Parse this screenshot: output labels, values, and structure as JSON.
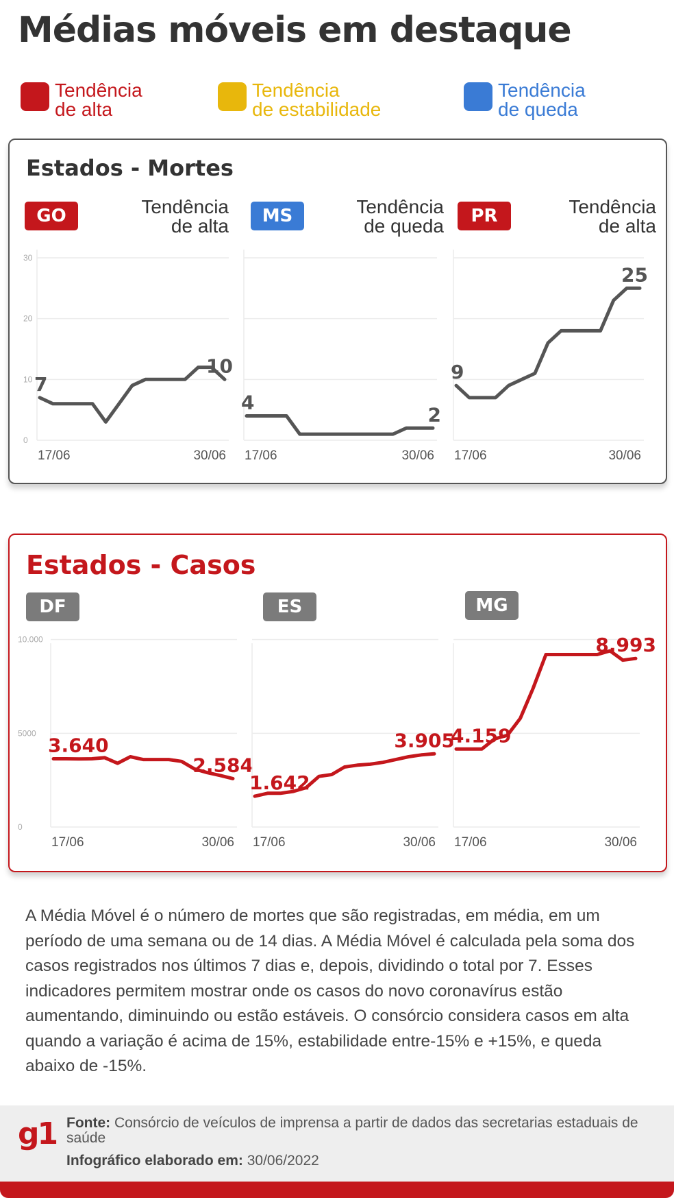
{
  "title": "Médias móveis em destaque",
  "legend": [
    {
      "label": "Tendência\nde alta",
      "color": "#c4171c"
    },
    {
      "label": "Tendência\nde estabilidade",
      "color": "#e8b70c"
    },
    {
      "label": "Tendência\nde queda",
      "color": "#3a7bd5"
    }
  ],
  "deaths_panel": {
    "title": "Estados - Mortes"
  },
  "cases_panel": {
    "title": "Estados - Casos"
  },
  "states": {
    "GO": {
      "badge": "GO",
      "badge_color": "#c4171c",
      "trend": "Tendência\nde alta"
    },
    "MS": {
      "badge": "MS",
      "badge_color": "#3a7bd5",
      "trend": "Tendência\nde queda"
    },
    "PR": {
      "badge": "PR",
      "badge_color": "#c4171c",
      "trend": "Tendência\nde alta"
    },
    "DF": {
      "badge": "DF",
      "badge_color": "#7b7b7b"
    },
    "ES": {
      "badge": "ES",
      "badge_color": "#7b7b7b"
    },
    "MG": {
      "badge": "MG",
      "badge_color": "#7b7b7b"
    }
  },
  "chart_data": [
    {
      "type": "line",
      "title": "Estados - Mortes",
      "ylim": [
        0,
        30
      ],
      "yticks": [
        "30",
        "20",
        "10",
        "0"
      ],
      "line_color": "#555555",
      "grid": true,
      "series": [
        {
          "name": "GO",
          "x_labels": [
            "17/06",
            "30/06"
          ],
          "values": [
            7,
            6,
            6,
            6,
            6,
            3,
            6,
            9,
            10,
            10,
            10,
            10,
            12,
            12,
            10
          ],
          "start_label": "7",
          "end_label": "10"
        },
        {
          "name": "MS",
          "x_labels": [
            "17/06",
            "30/06"
          ],
          "values": [
            4,
            4,
            4,
            4,
            1,
            1,
            1,
            1,
            1,
            1,
            1,
            1,
            2,
            2,
            2
          ],
          "start_label": "4",
          "end_label": "2"
        },
        {
          "name": "PR",
          "x_labels": [
            "17/06",
            "30/06"
          ],
          "values": [
            9,
            7,
            7,
            7,
            9,
            10,
            11,
            16,
            18,
            18,
            18,
            18,
            23,
            25,
            25
          ],
          "start_label": "9",
          "end_label": "25"
        }
      ]
    },
    {
      "type": "line",
      "title": "Estados - Casos",
      "ylim": [
        0,
        12000
      ],
      "yticks": [
        "10.000",
        "5000",
        "0"
      ],
      "line_color": "#c4171c",
      "grid": true,
      "series": [
        {
          "name": "DF",
          "x_labels": [
            "17/06",
            "30/06"
          ],
          "values": [
            3640,
            3640,
            3630,
            3640,
            3700,
            3400,
            3750,
            3600,
            3600,
            3600,
            3500,
            3100,
            2900,
            2750,
            2584
          ],
          "start_label": "3.640",
          "end_label": "2.584"
        },
        {
          "name": "ES",
          "x_labels": [
            "17/06",
            "30/06"
          ],
          "values": [
            1642,
            1800,
            1800,
            1900,
            2100,
            2700,
            2800,
            3200,
            3300,
            3350,
            3450,
            3600,
            3750,
            3850,
            3905
          ],
          "start_label": "1.642",
          "end_label": "3.905"
        },
        {
          "name": "MG",
          "x_labels": [
            "17/06",
            "30/06"
          ],
          "values": [
            4159,
            4159,
            4159,
            4700,
            4900,
            5800,
            7400,
            9200,
            9200,
            9200,
            9200,
            9200,
            9400,
            8900,
            8993
          ],
          "start_label": "4.159",
          "end_label": "8.993"
        }
      ]
    }
  ],
  "footnote": "A Média Móvel é o número de mortes que são registradas, em média, em um período de uma semana ou de 14 dias. A Média Móvel é calculada pela soma dos casos registrados nos últimos 7 dias e, depois, dividindo o total por 7. Esses indicadores permitem mostrar onde os casos do novo coronavírus estão aumentando, diminuindo ou estão estáveis. O consórcio considera casos em alta quando a variação é acima de 15%, estabilidade entre-15% e +15%, e queda abaixo de -15%.",
  "footer": {
    "logo": "g1",
    "source_label": "Fonte:",
    "source_text": "Consórcio de veículos de imprensa a partir de dados das secretarias estaduais de saúde",
    "date_label": "Infográfico elaborado em:",
    "date_text": "30/06/2022"
  }
}
